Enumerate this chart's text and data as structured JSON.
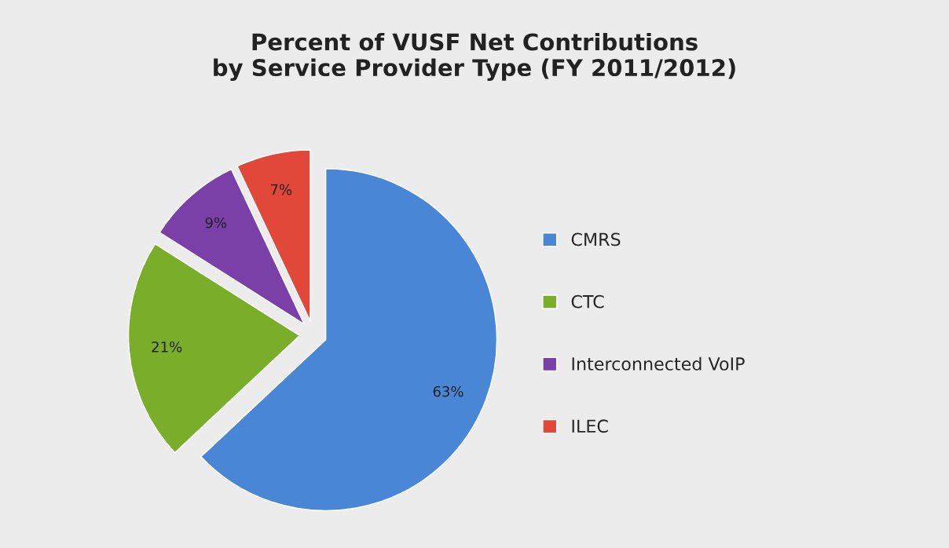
{
  "chart_data": {
    "type": "pie",
    "title": "Percent of VUSF Net Contributions\nby Service Provider Type (FY 2011/2012)",
    "categories": [
      "CMRS",
      "CTC",
      "Interconnected VoIP",
      "ILEC"
    ],
    "values": [
      63,
      21,
      9,
      7
    ],
    "value_labels": [
      "63%",
      "21%",
      "9%",
      "7%"
    ],
    "colors": [
      "#4a86d6",
      "#7aad2a",
      "#7b3fa8",
      "#e2483a"
    ],
    "legend": "right"
  }
}
